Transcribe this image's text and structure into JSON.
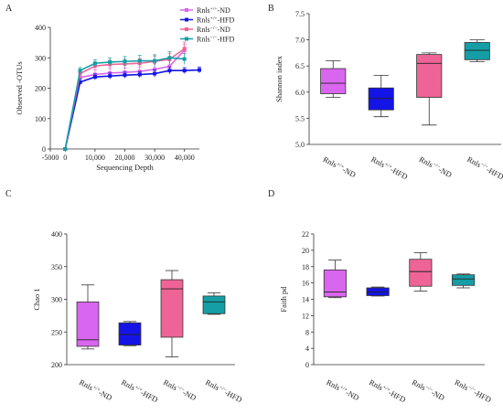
{
  "colors": {
    "ND_wt": "#d966ee",
    "HFD_wt": "#1414e6",
    "ND_ko": "#ee6497",
    "HFD_ko": "#159ea5"
  },
  "chart_data": [
    {
      "panel": "A",
      "type": "line",
      "xlabel": "Sequencing Depth",
      "ylabel": "Observed -OTUs",
      "xlim": [
        -5000,
        45000
      ],
      "ylim": [
        0,
        400
      ],
      "xticks": [
        "-5000",
        "0",
        "10,000",
        "20,000",
        "30,000",
        "40,000"
      ],
      "xtick_values": [
        -5000,
        0,
        10000,
        20000,
        30000,
        40000
      ],
      "yticks": [
        "0",
        "100",
        "200",
        "300",
        "400"
      ],
      "ytick_values": [
        0,
        100,
        200,
        300,
        400
      ],
      "legend_position": "top-right",
      "x": [
        0,
        5000,
        10000,
        15000,
        20000,
        25000,
        30000,
        35000,
        40000,
        45000
      ],
      "series": [
        {
          "name_base": "Rnls",
          "name_sup": "+/+",
          "name_suffix": "-ND",
          "color_key": "ND_wt",
          "values": [
            0,
            235,
            245,
            250,
            252,
            255,
            262,
            272,
            325,
            null
          ],
          "errors": [
            0,
            15,
            15,
            15,
            15,
            15,
            18,
            20,
            20,
            null
          ]
        },
        {
          "name_base": "Rnls",
          "name_sup": "+/+",
          "name_suffix": "-HFD",
          "color_key": "HFD_wt",
          "values": [
            0,
            220,
            237,
            240,
            243,
            245,
            248,
            258,
            258,
            260
          ],
          "errors": [
            0,
            10,
            10,
            10,
            10,
            10,
            12,
            12,
            10,
            10
          ]
        },
        {
          "name_base": "Rnls",
          "name_sup": "−/−",
          "name_suffix": "-ND",
          "color_key": "ND_ko",
          "values": [
            0,
            248,
            273,
            278,
            280,
            282,
            288,
            295,
            330,
            null
          ],
          "errors": [
            0,
            12,
            12,
            14,
            15,
            15,
            18,
            20,
            22,
            null
          ]
        },
        {
          "name_base": "Rnls",
          "name_sup": "−/−",
          "name_suffix": "-HFD",
          "color_key": "HFD_ko",
          "values": [
            0,
            258,
            282,
            286,
            288,
            290,
            290,
            300,
            296,
            null
          ],
          "errors": [
            0,
            10,
            12,
            14,
            16,
            18,
            20,
            20,
            18,
            null
          ]
        }
      ]
    },
    {
      "panel": "B",
      "type": "box",
      "ylabel": "Shannon index",
      "ylim": [
        5.0,
        7.5
      ],
      "yticks": [
        "5.0",
        "5.5",
        "6.0",
        "6.5",
        "7.0",
        "7.5"
      ],
      "ytick_values": [
        5.0,
        5.5,
        6.0,
        6.5,
        7.0,
        7.5
      ],
      "groups": [
        {
          "name_base": "Rnls",
          "name_sup": "+/+",
          "name_suffix": "-ND",
          "color_key": "ND_wt",
          "min": 5.9,
          "q1": 5.97,
          "median": 6.17,
          "q3": 6.45,
          "max": 6.6
        },
        {
          "name_base": "Rnls",
          "name_sup": "+/+",
          "name_suffix": "-HFD",
          "color_key": "HFD_wt",
          "min": 5.53,
          "q1": 5.66,
          "median": 5.88,
          "q3": 6.08,
          "max": 6.32
        },
        {
          "name_base": "Rnls",
          "name_sup": "−/−",
          "name_suffix": "-ND",
          "color_key": "ND_ko",
          "min": 5.37,
          "q1": 5.9,
          "median": 6.55,
          "q3": 6.72,
          "max": 6.75
        },
        {
          "name_base": "Rnls",
          "name_sup": "−/−",
          "name_suffix": "-HFD",
          "color_key": "HFD_ko",
          "min": 6.58,
          "q1": 6.62,
          "median": 6.8,
          "q3": 6.95,
          "max": 7.0
        }
      ]
    },
    {
      "panel": "C",
      "type": "box",
      "ylabel": "Chao 1",
      "ylim": [
        200,
        400
      ],
      "yticks": [
        "200",
        "250",
        "300",
        "350",
        "400"
      ],
      "ytick_values": [
        200,
        250,
        300,
        350,
        400
      ],
      "groups": [
        {
          "name_base": "Rnls",
          "name_sup": "+/+",
          "name_suffix": "-ND",
          "color_key": "ND_wt",
          "min": 224,
          "q1": 228,
          "median": 238,
          "q3": 296,
          "max": 322
        },
        {
          "name_base": "Rnls",
          "name_sup": "+/+",
          "name_suffix": "-HFD",
          "color_key": "HFD_wt",
          "min": 229,
          "q1": 230,
          "median": 246,
          "q3": 264,
          "max": 266
        },
        {
          "name_base": "Rnls",
          "name_sup": "−/−",
          "name_suffix": "-ND",
          "color_key": "ND_ko",
          "min": 212,
          "q1": 242,
          "median": 316,
          "q3": 330,
          "max": 344
        },
        {
          "name_base": "Rnls",
          "name_sup": "−/−",
          "name_suffix": "-HFD",
          "color_key": "HFD_ko",
          "min": 277,
          "q1": 278,
          "median": 296,
          "q3": 305,
          "max": 310
        }
      ]
    },
    {
      "panel": "D",
      "type": "box",
      "ylabel": "Faith pd",
      "ylim": [
        0,
        22
      ],
      "yticks": [
        "0",
        "4",
        "8",
        "12",
        "14",
        "16",
        "18",
        "20",
        "22"
      ],
      "ytick_values": [
        0,
        4,
        8,
        12,
        14,
        16,
        18,
        20,
        22
      ],
      "groups": [
        {
          "name_base": "Rnls",
          "name_sup": "+/+",
          "name_suffix": "-ND",
          "color_key": "ND_wt",
          "min": 14.2,
          "q1": 14.3,
          "median": 14.9,
          "q3": 17.6,
          "max": 18.8
        },
        {
          "name_base": "Rnls",
          "name_sup": "+/+",
          "name_suffix": "-HFD",
          "color_key": "HFD_wt",
          "min": 14.4,
          "q1": 14.45,
          "median": 14.9,
          "q3": 15.4,
          "max": 15.5
        },
        {
          "name_base": "Rnls",
          "name_sup": "−/−",
          "name_suffix": "-ND",
          "color_key": "ND_ko",
          "min": 15.0,
          "q1": 15.6,
          "median": 17.4,
          "q3": 18.9,
          "max": 19.7
        },
        {
          "name_base": "Rnls",
          "name_sup": "−/−",
          "name_suffix": "-HFD",
          "color_key": "HFD_ko",
          "min": 15.4,
          "q1": 15.7,
          "median": 16.5,
          "q3": 17.0,
          "max": 17.1
        }
      ]
    }
  ]
}
